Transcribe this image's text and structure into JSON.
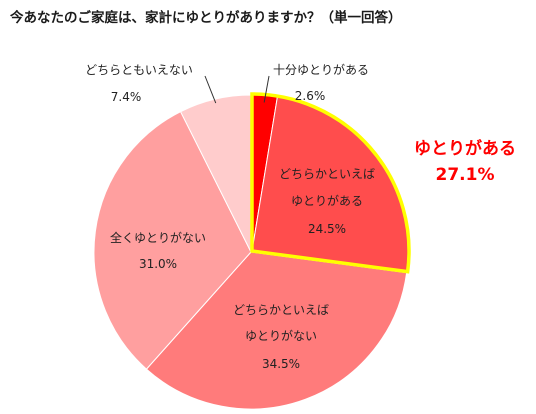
{
  "chart_data": {
    "type": "pie",
    "title": "今あなたのご家庭は、家計にゆとりがありますか？（単一回答）",
    "start_angle_deg": 0,
    "direction": "clockwise",
    "slices": [
      {
        "label": "十分ゆとりがある",
        "value": 2.6,
        "value_label": "2.6%",
        "color": "#ff0000"
      },
      {
        "label": "どちらかといえば",
        "label2": "ゆとりがある",
        "value": 24.5,
        "value_label": "24.5%",
        "color": "#ff4d4d"
      },
      {
        "label": "どちらかといえば",
        "label2": "ゆとりがない",
        "value": 34.5,
        "value_label": "34.5%",
        "color": "#ff7b7b"
      },
      {
        "label": "全くゆとりがない",
        "value": 31.0,
        "value_label": "31.0%",
        "color": "#ff9f9f"
      },
      {
        "label": "どちらともいえない",
        "value": 7.4,
        "value_label": "7.4%",
        "color": "#ffcccc"
      }
    ],
    "highlight": {
      "label": "ゆとりがある",
      "value": 27.1,
      "value_label": "27.1%",
      "color": "#ff0000",
      "outline_color": "#ffff00"
    }
  }
}
